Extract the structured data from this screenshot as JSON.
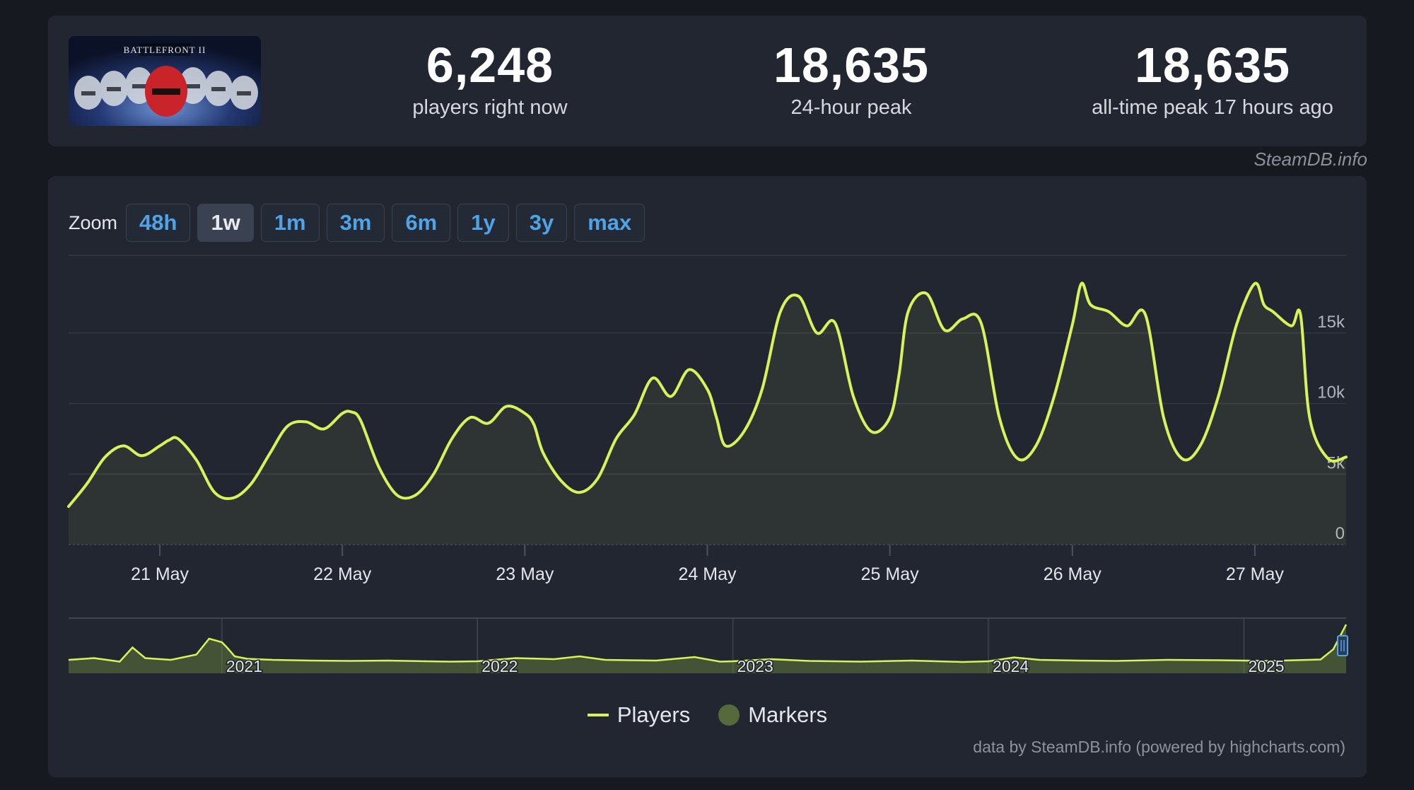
{
  "game": {
    "thumbnail_alt": "Star Wars Battlefront II Celebration Edition"
  },
  "stats": [
    {
      "value": "6,248",
      "label": "players right now"
    },
    {
      "value": "18,635",
      "label": "24-hour peak"
    },
    {
      "value": "18,635",
      "label": "all-time peak 17 hours ago"
    }
  ],
  "attribution_top": "SteamDB.info",
  "zoom": {
    "label": "Zoom",
    "options": [
      "48h",
      "1w",
      "1m",
      "3m",
      "6m",
      "1y",
      "3y",
      "max"
    ],
    "active": "1w"
  },
  "legend": {
    "players": "Players",
    "markers": "Markers"
  },
  "credit": "data by SteamDB.info (powered by highcharts.com)",
  "colors": {
    "line": "#d8f35a",
    "marker": "#55693b",
    "background": "#212631",
    "accent": "#4fa3e6"
  },
  "chart_data": [
    {
      "type": "area",
      "title": "",
      "xlabel": "",
      "ylabel": "",
      "ylim": [
        0,
        20000
      ],
      "y_ticks": [
        "0",
        "5k",
        "10k",
        "15k"
      ],
      "y_tick_values": [
        0,
        5000,
        10000,
        15000
      ],
      "x_tick_labels": [
        "21 May",
        "22 May",
        "23 May",
        "24 May",
        "25 May",
        "26 May",
        "27 May"
      ],
      "x_tick_values": [
        0,
        1,
        2,
        3,
        4,
        5,
        6
      ],
      "xlim": [
        -0.5,
        6.5
      ],
      "grid": true,
      "legend_position": "bottom-center",
      "series": [
        {
          "name": "Players",
          "x": [
            -0.5,
            -0.4,
            -0.3,
            -0.2,
            -0.1,
            0,
            0.05,
            0.1,
            0.2,
            0.3,
            0.4,
            0.5,
            0.6,
            0.7,
            0.8,
            0.9,
            1,
            1.05,
            1.1,
            1.2,
            1.3,
            1.4,
            1.5,
            1.6,
            1.7,
            1.8,
            1.9,
            2,
            2.05,
            2.1,
            2.2,
            2.3,
            2.4,
            2.5,
            2.6,
            2.7,
            2.8,
            2.9,
            3,
            3.05,
            3.1,
            3.2,
            3.3,
            3.4,
            3.5,
            3.6,
            3.7,
            3.8,
            3.9,
            4,
            4.05,
            4.1,
            4.2,
            4.3,
            4.4,
            4.5,
            4.6,
            4.7,
            4.8,
            4.9,
            5,
            5.05,
            5.1,
            5.2,
            5.3,
            5.4,
            5.5,
            5.6,
            5.7,
            5.8,
            5.9,
            6,
            6.05,
            6.1,
            6.2,
            6.25,
            6.3,
            6.4,
            6.5
          ],
          "y": [
            2700,
            4300,
            6200,
            7000,
            6300,
            7000,
            7400,
            7500,
            6000,
            3700,
            3300,
            4300,
            6400,
            8400,
            8700,
            8200,
            9300,
            9400,
            8800,
            5500,
            3500,
            3500,
            5000,
            7500,
            9000,
            8600,
            9800,
            9300,
            8500,
            6500,
            4500,
            3700,
            4700,
            7500,
            9200,
            11800,
            10500,
            12400,
            11000,
            9000,
            7000,
            8000,
            11000,
            16500,
            17600,
            15000,
            15700,
            10500,
            8000,
            9000,
            12000,
            16500,
            17800,
            15200,
            16000,
            15700,
            9000,
            6100,
            7000,
            10500,
            15600,
            18500,
            17000,
            16500,
            15500,
            16300,
            9000,
            6100,
            7000,
            10500,
            15600,
            18500,
            17000,
            16500,
            15500,
            16300,
            9000,
            6100,
            6200
          ]
        }
      ]
    },
    {
      "type": "area",
      "title": "",
      "xlabel": "",
      "ylabel": "",
      "xlim": [
        2020.4,
        2025.4
      ],
      "x_tick_labels": [
        "2021",
        "2022",
        "2023",
        "2024",
        "2025"
      ],
      "x_tick_values": [
        2021,
        2022,
        2023,
        2024,
        2025
      ],
      "grid": true,
      "series": [
        {
          "name": "Players",
          "x": [
            2020.4,
            2020.5,
            2020.6,
            2020.65,
            2020.7,
            2020.8,
            2020.9,
            2020.95,
            2021.0,
            2021.02,
            2021.05,
            2021.1,
            2021.2,
            2021.35,
            2021.5,
            2021.65,
            2021.8,
            2021.9,
            2022.0,
            2022.15,
            2022.3,
            2022.4,
            2022.5,
            2022.7,
            2022.85,
            2022.95,
            2023.0,
            2023.15,
            2023.3,
            2023.4,
            2023.5,
            2023.7,
            2023.9,
            2024.0,
            2024.1,
            2024.2,
            2024.35,
            2024.5,
            2024.7,
            2024.9,
            2025.0,
            2025.1,
            2025.2,
            2025.3,
            2025.35,
            2025.4
          ],
          "y": [
            3000,
            3500,
            2500,
            6500,
            3500,
            3000,
            4500,
            9000,
            8000,
            6500,
            4000,
            3300,
            3000,
            2800,
            2700,
            2800,
            2600,
            2500,
            2600,
            3500,
            3200,
            4000,
            3000,
            2800,
            3800,
            2500,
            2600,
            3200,
            2700,
            2600,
            2500,
            2800,
            2400,
            2600,
            3700,
            3000,
            2800,
            2700,
            3000,
            2900,
            2800,
            2700,
            2900,
            3100,
            6000,
            13000
          ]
        }
      ]
    }
  ]
}
